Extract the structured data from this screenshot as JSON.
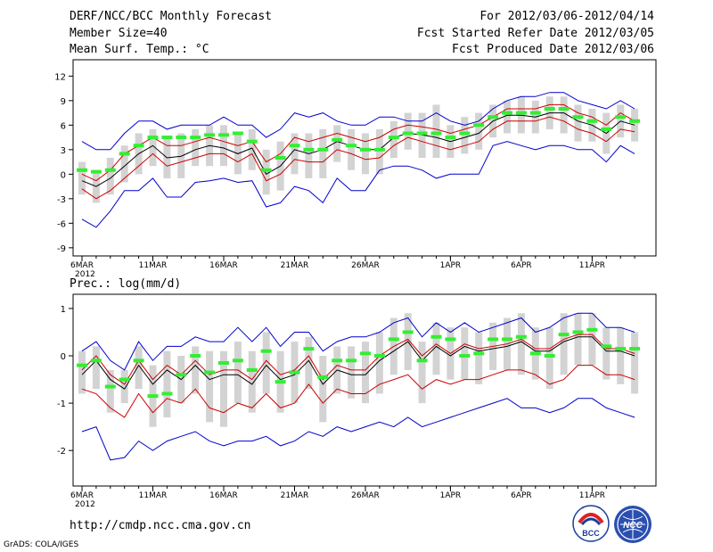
{
  "header": {
    "title": "DERF/NCC/BCC Monthly Forecast",
    "member_size": "Member Size=40",
    "variable": "Mean Surf. Temp.: °C",
    "period": "For 2012/03/06-2012/04/14",
    "refer_date": "Fcst Started Refer Date 2012/03/05",
    "produced_date": "Fcst Produced Date 2012/03/06"
  },
  "footer": {
    "url": "http://cmdp.ncc.cma.gov.cn",
    "grads": "GrADS: COLA/IGES",
    "logo_bcc": "BCC",
    "logo_ncc": "NCC"
  },
  "colors": {
    "box": "#d3d3d3",
    "median": "#000000",
    "red": "#cc0000",
    "blue": "#0000cc",
    "green": "#33ee33"
  },
  "chart_data": [
    {
      "type": "line",
      "title": "Mean Surf. Temp.: °C",
      "x_first_label_year": "2012",
      "x_ticks": [
        {
          "day": 0,
          "label": "6MAR"
        },
        {
          "day": 5,
          "label": "11MAR"
        },
        {
          "day": 10,
          "label": "16MAR"
        },
        {
          "day": 15,
          "label": "21MAR"
        },
        {
          "day": 20,
          "label": "26MAR"
        },
        {
          "day": 26,
          "label": "1APR"
        },
        {
          "day": 31,
          "label": "6APR"
        },
        {
          "day": 36,
          "label": "11APR"
        }
      ],
      "y_ticks": [
        "12",
        "9",
        "6",
        "3",
        "0",
        "-3",
        "-6",
        "-9"
      ],
      "y_tick_values": [
        12,
        9,
        6,
        3,
        0,
        -3,
        -6,
        -9
      ],
      "ylim": [
        -10,
        14
      ],
      "series": [
        {
          "name": "median",
          "values": [
            -0.8,
            -1.5,
            -0.5,
            1,
            2.5,
            3.5,
            2,
            2.2,
            3,
            3.5,
            3.2,
            2.5,
            3.2,
            0,
            1,
            3,
            2.5,
            3,
            4,
            3.5,
            3,
            3,
            4.5,
            5,
            4.8,
            4.5,
            4,
            4.5,
            5,
            6.5,
            7.2,
            7.2,
            7,
            7.5,
            7.5,
            6.5,
            6,
            5,
            6.5,
            6
          ]
        },
        {
          "name": "red_upper",
          "values": [
            0,
            -0.8,
            0.5,
            2.5,
            3.5,
            4.5,
            3.5,
            3.5,
            4,
            4.5,
            4,
            3.5,
            4,
            1.5,
            2.5,
            4.5,
            4,
            4.5,
            5,
            4.5,
            4,
            4.5,
            5.5,
            6,
            5.8,
            5.5,
            5,
            5.5,
            6,
            7,
            8,
            8,
            8,
            8.5,
            8.5,
            7.5,
            7,
            6,
            7.5,
            6.5
          ]
        },
        {
          "name": "red_lower",
          "values": [
            -1.8,
            -3,
            -2,
            -0.5,
            1,
            2.5,
            1,
            1.5,
            2,
            2.5,
            2.5,
            1.5,
            2.5,
            -0.8,
            0,
            1.8,
            1.5,
            1.5,
            3,
            2.5,
            1.8,
            2,
            3.5,
            4.5,
            4,
            3.5,
            3,
            3.5,
            4,
            5.5,
            6.5,
            6.5,
            6.5,
            7,
            6.5,
            5.5,
            5,
            4,
            5.5,
            5.2
          ]
        },
        {
          "name": "blue_upper",
          "values": [
            4,
            3,
            3,
            5,
            6.5,
            6.5,
            5.5,
            6,
            6,
            6,
            7,
            6,
            6,
            4.5,
            5.5,
            7.5,
            7,
            7.5,
            6.5,
            6,
            6,
            7,
            7,
            6.5,
            6.5,
            7.5,
            6.5,
            6,
            6.5,
            8,
            9,
            9.5,
            9.5,
            10,
            10,
            9,
            8.5,
            8,
            9,
            8
          ]
        },
        {
          "name": "blue_lower",
          "values": [
            -5.5,
            -6.5,
            -4.5,
            -2,
            -2,
            -0.5,
            -2.8,
            -2.8,
            -1,
            -0.8,
            -0.5,
            -1,
            -0.8,
            -4,
            -3.5,
            -1.5,
            -2,
            -3.5,
            -0.5,
            -2,
            -2,
            0.5,
            1,
            1,
            0.5,
            -0.5,
            0,
            0,
            0,
            3.5,
            4,
            3.5,
            3,
            3.5,
            3.5,
            3,
            3,
            1.5,
            3.5,
            2.5
          ]
        },
        {
          "name": "ensemble_mean",
          "values": [
            0.5,
            0.3,
            0.5,
            2.5,
            3.5,
            4.5,
            4.5,
            4.5,
            4.5,
            4.8,
            4.8,
            5,
            4,
            0.5,
            2,
            3.5,
            3,
            3,
            4.2,
            3.5,
            3,
            3,
            4.5,
            5,
            5,
            5,
            4.5,
            5,
            6,
            7,
            7.5,
            7.5,
            7.5,
            8,
            8,
            7,
            6.5,
            5.5,
            7,
            6.5
          ]
        },
        {
          "name": "box_high",
          "values": [
            1.5,
            0.5,
            2,
            3.5,
            5,
            5.5,
            4.5,
            5,
            5.5,
            6,
            6,
            5,
            5.5,
            3,
            4,
            5,
            5,
            5.5,
            6,
            5.5,
            5,
            5.5,
            6.5,
            7.5,
            7.5,
            8.5,
            6,
            7,
            7.5,
            8.5,
            9,
            9.5,
            9,
            9.5,
            9.5,
            8.5,
            8,
            7.5,
            8.5,
            8
          ]
        },
        {
          "name": "box_low",
          "values": [
            -2.5,
            -3.5,
            -2.5,
            -1,
            0,
            1,
            -0.5,
            -0.5,
            1,
            1,
            1,
            0,
            0.5,
            -2.5,
            -2,
            0,
            -0.5,
            -0.5,
            1.5,
            0.5,
            0,
            0,
            2,
            3,
            2,
            2,
            2,
            2.5,
            3,
            4.5,
            5,
            5,
            5,
            5.5,
            5,
            4,
            4,
            2.5,
            4.5,
            4
          ]
        }
      ]
    },
    {
      "type": "line",
      "title": "Prec.: log(mm/d)",
      "x_first_label_year": "2012",
      "x_ticks": [
        {
          "day": 0,
          "label": "6MAR"
        },
        {
          "day": 5,
          "label": "11MAR"
        },
        {
          "day": 10,
          "label": "16MAR"
        },
        {
          "day": 15,
          "label": "21MAR"
        },
        {
          "day": 20,
          "label": "26MAR"
        },
        {
          "day": 26,
          "label": "1APR"
        },
        {
          "day": 31,
          "label": "6APR"
        },
        {
          "day": 36,
          "label": "11APR"
        }
      ],
      "y_ticks": [
        "1",
        "0",
        "-1",
        "-2"
      ],
      "y_tick_values": [
        1,
        0,
        -1,
        -2
      ],
      "ylim": [
        -2.75,
        1.3
      ],
      "series": [
        {
          "name": "median",
          "values": [
            -0.4,
            -0.1,
            -0.5,
            -0.7,
            -0.2,
            -0.6,
            -0.3,
            -0.5,
            -0.2,
            -0.5,
            -0.4,
            -0.4,
            -0.6,
            -0.2,
            -0.5,
            -0.4,
            -0.1,
            -0.6,
            -0.3,
            -0.4,
            -0.4,
            -0.1,
            0.1,
            0.3,
            -0.1,
            0.2,
            0,
            0.2,
            0.1,
            0.15,
            0.2,
            0.3,
            0.1,
            0.1,
            0.3,
            0.4,
            0.4,
            0.1,
            0.1,
            0
          ]
        },
        {
          "name": "red_upper",
          "values": [
            -0.3,
            0,
            -0.4,
            -0.6,
            -0.1,
            -0.5,
            -0.2,
            -0.4,
            -0.1,
            -0.4,
            -0.3,
            -0.3,
            -0.5,
            -0.1,
            -0.4,
            -0.3,
            0,
            -0.5,
            -0.2,
            -0.3,
            -0.3,
            0,
            0.2,
            0.35,
            0,
            0.25,
            0.05,
            0.25,
            0.15,
            0.2,
            0.25,
            0.35,
            0.15,
            0.15,
            0.35,
            0.45,
            0.45,
            0.15,
            0.15,
            0.05
          ]
        },
        {
          "name": "red_lower",
          "values": [
            -0.7,
            -0.8,
            -1.1,
            -1.3,
            -0.8,
            -1.2,
            -0.9,
            -1,
            -0.7,
            -1.1,
            -1.2,
            -1,
            -1.1,
            -0.8,
            -1.1,
            -1,
            -0.6,
            -1,
            -0.7,
            -0.8,
            -0.8,
            -0.6,
            -0.5,
            -0.4,
            -0.7,
            -0.5,
            -0.6,
            -0.5,
            -0.5,
            -0.4,
            -0.3,
            -0.3,
            -0.4,
            -0.6,
            -0.5,
            -0.2,
            -0.2,
            -0.4,
            -0.4,
            -0.5
          ]
        },
        {
          "name": "blue_upper",
          "values": [
            0.1,
            0.3,
            -0.1,
            -0.3,
            0.3,
            -0.1,
            0.2,
            0.2,
            0.4,
            0.3,
            0.3,
            0.6,
            0.3,
            0.6,
            0.2,
            0.5,
            0.5,
            0.1,
            0.3,
            0.4,
            0.4,
            0.5,
            0.7,
            0.8,
            0.4,
            0.7,
            0.5,
            0.7,
            0.5,
            0.6,
            0.7,
            0.8,
            0.5,
            0.6,
            0.8,
            0.9,
            0.9,
            0.6,
            0.6,
            0.5
          ]
        },
        {
          "name": "blue_lower",
          "values": [
            -1.6,
            -1.5,
            -2.2,
            -2.15,
            -1.8,
            -2,
            -1.8,
            -1.7,
            -1.6,
            -1.8,
            -1.9,
            -1.8,
            -1.8,
            -1.7,
            -1.9,
            -1.8,
            -1.6,
            -1.7,
            -1.5,
            -1.6,
            -1.5,
            -1.4,
            -1.5,
            -1.3,
            -1.5,
            -1.4,
            -1.3,
            -1.2,
            -1.1,
            -1,
            -0.9,
            -1.1,
            -1.1,
            -1.2,
            -1.1,
            -0.9,
            -0.9,
            -1.1,
            -1.2,
            -1.3
          ]
        },
        {
          "name": "ensemble_mean",
          "values": [
            -0.2,
            -0.1,
            -0.65,
            -0.5,
            -0.1,
            -0.85,
            -0.8,
            -0.4,
            0,
            -0.35,
            -0.15,
            -0.1,
            -0.3,
            0.1,
            -0.55,
            -0.35,
            0.15,
            -0.45,
            -0.1,
            -0.1,
            0.05,
            0,
            0.35,
            0.5,
            -0.1,
            0.4,
            0.35,
            0,
            0.05,
            0.35,
            0.35,
            0.4,
            0.05,
            0,
            0.45,
            0.5,
            0.55,
            0.2,
            0.15,
            0.15
          ]
        },
        {
          "name": "box_high",
          "values": [
            0.1,
            0.2,
            -0.3,
            -0.3,
            0.2,
            -0.2,
            0.1,
            0,
            0.2,
            0.1,
            0.1,
            0.3,
            0.1,
            0.5,
            0.1,
            0.3,
            0.4,
            0,
            0.2,
            0.2,
            0.3,
            0.5,
            0.8,
            0.9,
            0.3,
            0.7,
            0.6,
            0.6,
            0.5,
            0.7,
            0.8,
            0.9,
            0.6,
            0.6,
            0.9,
            0.9,
            0.9,
            0.6,
            0.6,
            0.5
          ]
        },
        {
          "name": "box_low",
          "values": [
            -0.8,
            -0.7,
            -1.2,
            -1,
            -0.7,
            -1.5,
            -1.3,
            -1,
            -0.8,
            -1.4,
            -1.5,
            -1,
            -1.2,
            -0.8,
            -1.2,
            -1,
            -0.7,
            -1.4,
            -0.8,
            -0.9,
            -1,
            -0.8,
            -0.4,
            -0.3,
            -1,
            -0.4,
            -0.5,
            -0.5,
            -0.6,
            -0.3,
            -0.3,
            -0.4,
            -0.5,
            -0.7,
            -0.4,
            -0.2,
            -0.2,
            -0.5,
            -0.6,
            -0.8
          ]
        }
      ]
    }
  ]
}
